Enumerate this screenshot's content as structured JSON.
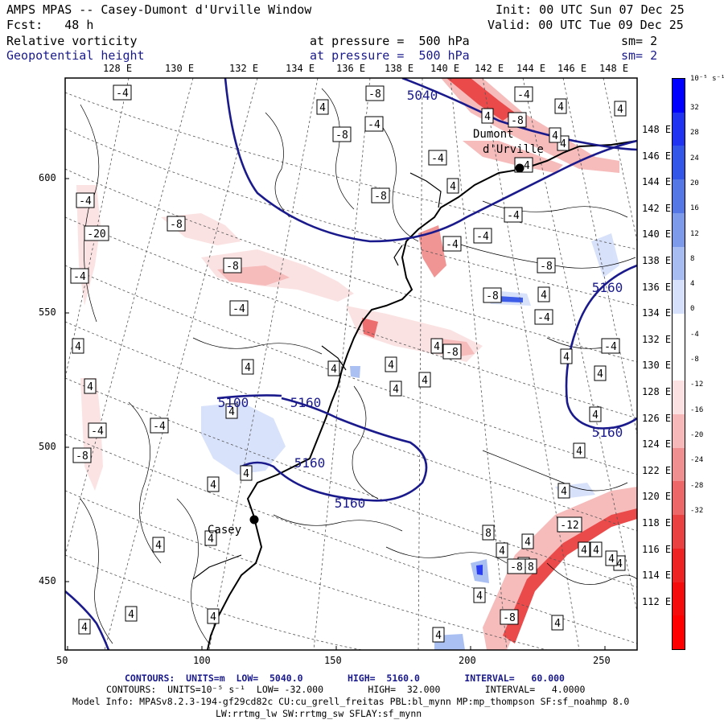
{
  "header": {
    "title": "AMPS MPAS -- Casey-Dumont d'Urville Window",
    "init": "Init: 00 UTC Sun 07 Dec 25",
    "fcst": "Fcst:   48 h",
    "valid": "Valid: 00 UTC Tue 09 Dec 25",
    "field1_name": "Relative vorticity",
    "field1_level": "at pressure =  500 hPa",
    "field1_sm": "sm= 2",
    "field2_name": "Geopotential height",
    "field2_level": "at pressure =  500 hPa",
    "field2_sm": "sm= 2"
  },
  "axes": {
    "top_lon_labels": [
      "128 E",
      "130 E",
      "132 E",
      "134 E",
      "136 E",
      "138 E",
      "140 E",
      "142 E",
      "144 E",
      "146 E",
      "148 E"
    ],
    "right_lon_labels": [
      "148 E",
      "146 E",
      "144 E",
      "142 E",
      "140 E",
      "138 E",
      "136 E",
      "134 E",
      "132 E",
      "130 E",
      "128 E",
      "126 E",
      "124 E",
      "122 E",
      "120 E",
      "118 E",
      "116 E",
      "114 E",
      "112 E"
    ],
    "x_grid_labels": [
      "50",
      "100",
      "150",
      "200",
      "250"
    ],
    "y_grid_labels": [
      "600",
      "550",
      "500",
      "450"
    ]
  },
  "colorbar": {
    "units": "10⁻⁵ s⁻¹",
    "labels": [
      "32",
      "28",
      "24",
      "20",
      "16",
      "12",
      "8",
      "4",
      "0",
      "-4",
      "-8",
      "-12",
      "-16",
      "-20",
      "-24",
      "-28",
      "-32"
    ],
    "colors": [
      "#0000ff",
      "#1f33f0",
      "#3355e8",
      "#5577e6",
      "#7c99ea",
      "#a7bdf2",
      "#d6e0fa",
      "#ffffff",
      "#ffffff",
      "#fbe1e1",
      "#f6b8b8",
      "#f08f8f",
      "#ec6767",
      "#e94141",
      "#ed2222",
      "#f40b0b",
      "#ff0000"
    ]
  },
  "map": {
    "stations": [
      {
        "name": "Dumont d'Urville"
      },
      {
        "name": "Casey"
      }
    ],
    "height_labels": [
      "5040",
      "5100",
      "5160",
      "5160",
      "5160",
      "5160",
      "5160"
    ],
    "vort_labels": [
      "-4",
      "-8",
      "4",
      "-4",
      "-8",
      "-4",
      "4",
      "-8",
      "-4",
      "-8",
      "-20",
      "-8",
      "-4",
      "-4",
      "-4",
      "-4",
      "-4",
      "-8",
      "-8",
      "4",
      "4",
      "4",
      "4",
      "4",
      "4",
      "4",
      "-4",
      "4",
      "4",
      "4",
      "-4",
      "4",
      "-4",
      "-8",
      "4",
      "4",
      "4",
      "-4",
      "4",
      "4",
      "-8",
      "4",
      "4",
      "-4",
      "4",
      "-8",
      "4",
      "4",
      "8",
      "4",
      "4",
      "4",
      "4",
      "-12",
      "4",
      "-8",
      "4",
      "4",
      "-8",
      "4",
      "4",
      "4",
      "4",
      "-4",
      "4",
      "4",
      "4",
      "-8",
      "4",
      "4"
    ]
  },
  "footer": {
    "line1": "CONTOURS:  UNITS=m  LOW=  5040.0        HIGH=  5160.0        INTERVAL=   60.000",
    "line2": "CONTOURS:  UNITS=10⁻⁵ s⁻¹  LOW= -32.000        HIGH=  32.000        INTERVAL=   4.0000",
    "line3": "Model Info: MPASv8.2.3-194-gf29cd82c CU:cu_grell_freitas PBL:bl_mynn MP:mp_thompson SF:sf_noahmp 8.0",
    "line4": "LW:rrtmg_lw SW:rrtmg_sw SFLAY:sf_mynn"
  }
}
